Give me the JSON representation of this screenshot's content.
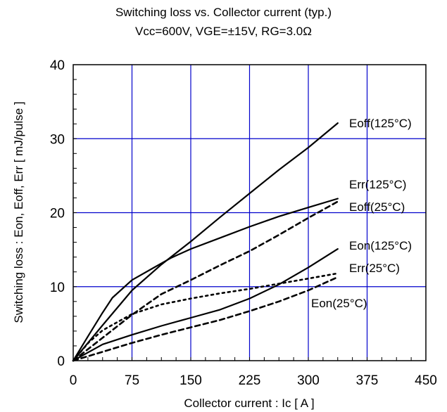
{
  "title": "Switching loss vs. Collector current (typ.)",
  "subtitle": "Vcc=600V, VGE=±15V, RG=3.0Ω",
  "chart_data": {
    "type": "line",
    "title": "Switching loss vs. Collector current (typ.)",
    "subtitle": "Vcc=600V, VGE=±15V, RG=3.0Ω",
    "xlabel": "Collector current : Ic [ A ]",
    "ylabel": "Switching loss : Eon, Eoff, Err [ mJ/pulse ]",
    "xlim": [
      0,
      450
    ],
    "ylim": [
      0,
      40
    ],
    "xticks": [
      0,
      75,
      150,
      225,
      300,
      375,
      450
    ],
    "yticks": [
      0,
      10,
      20,
      30,
      40
    ],
    "grid": true,
    "grid_color": "#0000cc",
    "series": [
      {
        "name": "Eoff(125°C)",
        "style": "solid",
        "points": [
          [
            0,
            0
          ],
          [
            37.5,
            4.8
          ],
          [
            75,
            9.5
          ],
          [
            112.5,
            13
          ],
          [
            150,
            16.1
          ],
          [
            187.5,
            19.4
          ],
          [
            225,
            22.6
          ],
          [
            262.5,
            25.8
          ],
          [
            300,
            28.8
          ],
          [
            337.5,
            32.1
          ]
        ]
      },
      {
        "name": "Err(125°C)",
        "style": "solid",
        "points": [
          [
            0,
            0
          ],
          [
            20,
            3.5
          ],
          [
            37.5,
            6.5
          ],
          [
            50,
            8.5
          ],
          [
            75,
            10.9
          ],
          [
            100,
            12.4
          ],
          [
            125,
            13.9
          ],
          [
            150,
            15.1
          ],
          [
            187.5,
            16.6
          ],
          [
            225,
            18.1
          ],
          [
            262.5,
            19.5
          ],
          [
            300,
            20.7
          ],
          [
            337.5,
            21.9
          ]
        ]
      },
      {
        "name": "Eoff(25°C)",
        "style": "dashed",
        "points": [
          [
            0,
            0
          ],
          [
            37.5,
            3.1
          ],
          [
            75,
            6.2
          ],
          [
            112.5,
            9
          ],
          [
            150,
            10.9
          ],
          [
            187.5,
            12.9
          ],
          [
            225,
            14.8
          ],
          [
            262.5,
            17
          ],
          [
            300,
            19.3
          ],
          [
            337.5,
            21.5
          ]
        ]
      },
      {
        "name": "Eon(125°C)",
        "style": "solid",
        "points": [
          [
            0,
            0
          ],
          [
            37.5,
            2.2
          ],
          [
            75,
            3.5
          ],
          [
            112.5,
            4.7
          ],
          [
            150,
            5.8
          ],
          [
            187.5,
            6.9
          ],
          [
            225,
            8.4
          ],
          [
            262.5,
            10.3
          ],
          [
            300,
            12.6
          ],
          [
            337.5,
            15.1
          ]
        ]
      },
      {
        "name": "Err(25°C)",
        "style": "dotted",
        "points": [
          [
            0,
            0
          ],
          [
            20,
            2.5
          ],
          [
            37.5,
            4.1
          ],
          [
            75,
            6.3
          ],
          [
            112.5,
            7.6
          ],
          [
            150,
            8.4
          ],
          [
            187.5,
            9.1
          ],
          [
            225,
            9.7
          ],
          [
            262.5,
            10.4
          ],
          [
            300,
            11.1
          ],
          [
            337.5,
            11.8
          ]
        ]
      },
      {
        "name": "Eon(25°C)",
        "style": "dashed",
        "points": [
          [
            0,
            0
          ],
          [
            37.5,
            1.2
          ],
          [
            75,
            2.4
          ],
          [
            112.5,
            3.5
          ],
          [
            150,
            4.5
          ],
          [
            187.5,
            5.5
          ],
          [
            225,
            6.7
          ],
          [
            262.5,
            8
          ],
          [
            300,
            9.5
          ],
          [
            337.5,
            11.3
          ]
        ]
      }
    ]
  }
}
